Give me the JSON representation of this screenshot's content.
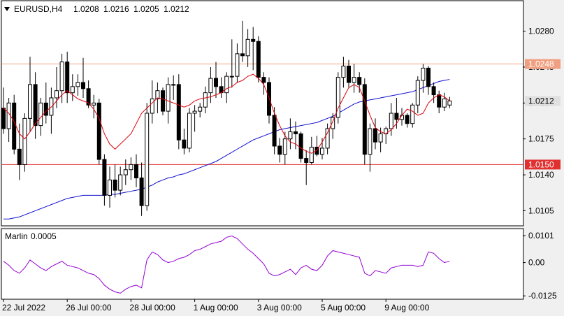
{
  "symbol_header": {
    "symbol": "EURUSD,H4",
    "open": "1.0208",
    "high": "1.0216",
    "low": "1.0205",
    "close": "1.0212",
    "menu_icon": "triangle-down-icon"
  },
  "indicator": {
    "name": "Marlin",
    "value": "0.0005",
    "color": "#9400d3"
  },
  "colors": {
    "background": "#ffffff",
    "frame": "#000000",
    "grid": "#e8e8e8",
    "bull_candle": "#ffffff",
    "bear_candle": "#000000",
    "fast_ma": "#e0000a",
    "slow_ma": "#1010d0",
    "level_upper": "#f0a080",
    "level_lower": "#e03030",
    "current_price": "#e0e0e0"
  },
  "chart_data": [
    {
      "type": "candlestick",
      "title": "EURUSD,H4",
      "y_ticks": [
        "1.0280",
        "1.0245",
        "1.0210",
        "1.0175",
        "1.0140",
        "1.0105"
      ],
      "ylim": [
        1.0091,
        1.0309
      ],
      "x_tick_labels": [
        "22 Jul 2022",
        "26 Jul 00:00",
        "28 Jul 00:00",
        "1 Aug 00:00",
        "3 Aug 00:00",
        "5 Aug 00:00",
        "9 Aug 00:00"
      ],
      "horizontal_levels": [
        {
          "label": "1.0248",
          "value": 1.0248,
          "color": "#f0a080"
        },
        {
          "label": "1.0150",
          "value": 1.015,
          "color": "#e03030"
        }
      ],
      "current_price": {
        "label": "1.0212",
        "value": 1.0212
      },
      "candles": [
        [
          1.0205,
          1.0225,
          1.018,
          1.0185
        ],
        [
          1.0185,
          1.0215,
          1.0172,
          1.021
        ],
        [
          1.021,
          1.0218,
          1.016,
          1.0165
        ],
        [
          1.0165,
          1.019,
          1.0135,
          1.015
        ],
        [
          1.015,
          1.02,
          1.0143,
          1.0195
        ],
        [
          1.0195,
          1.0255,
          1.0182,
          1.0228
        ],
        [
          1.0228,
          1.024,
          1.0175,
          1.0188
        ],
        [
          1.0188,
          1.0215,
          1.0178,
          1.021
        ],
        [
          1.021,
          1.023,
          1.019,
          1.0198
        ],
        [
          1.0198,
          1.0225,
          1.018,
          1.0215
        ],
        [
          1.0215,
          1.0245,
          1.0205,
          1.0222
        ],
        [
          1.0222,
          1.0258,
          1.021,
          1.025
        ],
        [
          1.025,
          1.026,
          1.021,
          1.022
        ],
        [
          1.022,
          1.0238,
          1.0212,
          1.0226
        ],
        [
          1.0226,
          1.0238,
          1.0217,
          1.023
        ],
        [
          1.023,
          1.0254,
          1.0215,
          1.0224
        ],
        [
          1.0224,
          1.0232,
          1.0205,
          1.0208
        ],
        [
          1.0208,
          1.0218,
          1.0195,
          1.021
        ],
        [
          1.021,
          1.0214,
          1.015,
          1.0155
        ],
        [
          1.0155,
          1.016,
          1.011,
          1.012
        ],
        [
          1.012,
          1.0148,
          1.0108,
          1.0135
        ],
        [
          1.0135,
          1.015,
          1.0118,
          1.0125
        ],
        [
          1.0125,
          1.0148,
          1.012,
          1.014
        ],
        [
          1.014,
          1.0155,
          1.013,
          1.0145
        ],
        [
          1.0145,
          1.0157,
          1.0135,
          1.015
        ],
        [
          1.015,
          1.016,
          1.0128,
          1.0137
        ],
        [
          1.0137,
          1.0152,
          1.01,
          1.011
        ],
        [
          1.011,
          1.021,
          1.0105,
          1.02
        ],
        [
          1.02,
          1.0232,
          1.019,
          1.0214
        ],
        [
          1.0214,
          1.023,
          1.02,
          1.0222
        ],
        [
          1.0222,
          1.0225,
          1.0198,
          1.0202
        ],
        [
          1.0202,
          1.0235,
          1.019,
          1.0228
        ],
        [
          1.0228,
          1.0237,
          1.0213,
          1.0228
        ],
        [
          1.0228,
          1.0238,
          1.0165,
          1.0174
        ],
        [
          1.0174,
          1.0185,
          1.016,
          1.0166
        ],
        [
          1.0166,
          1.0205,
          1.0162,
          1.02
        ],
        [
          1.02,
          1.0208,
          1.0182,
          1.0202
        ],
        [
          1.0202,
          1.021,
          1.0196,
          1.0206
        ],
        [
          1.0206,
          1.0226,
          1.02,
          1.022
        ],
        [
          1.022,
          1.0245,
          1.021,
          1.0234
        ],
        [
          1.0234,
          1.025,
          1.0215,
          1.0226
        ],
        [
          1.0226,
          1.0235,
          1.0215,
          1.022
        ],
        [
          1.022,
          1.024,
          1.021,
          1.0236
        ],
        [
          1.0236,
          1.0272,
          1.0225,
          1.0236
        ],
        [
          1.0236,
          1.0268,
          1.023,
          1.0258
        ],
        [
          1.0258,
          1.029,
          1.025,
          1.0256
        ],
        [
          1.0256,
          1.0282,
          1.0245,
          1.0272
        ],
        [
          1.0272,
          1.0284,
          1.0242,
          1.027
        ],
        [
          1.027,
          1.0275,
          1.023,
          1.0235
        ],
        [
          1.0235,
          1.024,
          1.0218,
          1.023
        ],
        [
          1.023,
          1.0235,
          1.019,
          1.0198
        ],
        [
          1.0198,
          1.0206,
          1.016,
          1.0168
        ],
        [
          1.0168,
          1.0176,
          1.0152,
          1.016
        ],
        [
          1.016,
          1.0182,
          1.015,
          1.0175
        ],
        [
          1.0175,
          1.0195,
          1.0165,
          1.0182
        ],
        [
          1.0182,
          1.0192,
          1.0165,
          1.018
        ],
        [
          1.018,
          1.0182,
          1.0152,
          1.0156
        ],
        [
          1.0156,
          1.0164,
          1.013,
          1.0152
        ],
        [
          1.0152,
          1.0177,
          1.015,
          1.0167
        ],
        [
          1.0167,
          1.0178,
          1.0158,
          1.016
        ],
        [
          1.016,
          1.0176,
          1.0155,
          1.0166
        ],
        [
          1.0166,
          1.019,
          1.016,
          1.0185
        ],
        [
          1.0185,
          1.02,
          1.0175,
          1.0196
        ],
        [
          1.0196,
          1.024,
          1.019,
          1.0235
        ],
        [
          1.0235,
          1.0255,
          1.0225,
          1.0246
        ],
        [
          1.0246,
          1.0252,
          1.0225,
          1.023
        ],
        [
          1.023,
          1.0248,
          1.022,
          1.0235
        ],
        [
          1.0235,
          1.024,
          1.022,
          1.0228
        ],
        [
          1.0228,
          1.0234,
          1.015,
          1.016
        ],
        [
          1.016,
          1.019,
          1.0143,
          1.0185
        ],
        [
          1.0185,
          1.0195,
          1.0165,
          1.0172
        ],
        [
          1.0172,
          1.0186,
          1.0162,
          1.018
        ],
        [
          1.018,
          1.0187,
          1.017,
          1.0185
        ],
        [
          1.0185,
          1.021,
          1.0178,
          1.02
        ],
        [
          1.02,
          1.0215,
          1.0185,
          1.0194
        ],
        [
          1.0194,
          1.0205,
          1.0188,
          1.0198
        ],
        [
          1.0198,
          1.02,
          1.0186,
          1.019
        ],
        [
          1.019,
          1.021,
          1.0186,
          1.0208
        ],
        [
          1.0208,
          1.0236,
          1.02,
          1.0232
        ],
        [
          1.0232,
          1.0248,
          1.022,
          1.0244
        ],
        [
          1.0244,
          1.0246,
          1.0218,
          1.0226
        ],
        [
          1.0226,
          1.023,
          1.021,
          1.0218
        ],
        [
          1.0218,
          1.0222,
          1.02,
          1.0206
        ],
        [
          1.0206,
          1.022,
          1.0202,
          1.0214
        ],
        [
          1.0208,
          1.0216,
          1.0205,
          1.0212
        ]
      ],
      "fast_ma": [
        1.0205,
        1.02,
        1.0192,
        1.018,
        1.0175,
        1.0182,
        1.019,
        1.0196,
        1.0202,
        1.0206,
        1.0212,
        1.0218,
        1.0222,
        1.0218,
        1.0214,
        1.0212,
        1.021,
        1.0204,
        1.0195,
        1.018,
        1.017,
        1.0165,
        1.017,
        1.0175,
        1.018,
        1.019,
        1.02,
        1.0205,
        1.021,
        1.0215,
        1.0214,
        1.0212,
        1.021,
        1.0208,
        1.0206,
        1.0208,
        1.0212,
        1.0214,
        1.0215,
        1.0216,
        1.0218,
        1.022,
        1.0224,
        1.0226,
        1.023,
        1.0232,
        1.0236,
        1.0238,
        1.0234,
        1.0228,
        1.0215,
        1.02,
        1.0188,
        1.0178,
        1.0172,
        1.017,
        1.0166,
        1.0163,
        1.0161,
        1.0164,
        1.0172,
        1.0181,
        1.0192,
        1.0205,
        1.0215,
        1.0225,
        1.0228,
        1.0225,
        1.0212,
        1.0198,
        1.0186,
        1.0182,
        1.018,
        1.0184,
        1.019,
        1.0198,
        1.0204,
        1.0202,
        1.0198,
        1.02,
        1.021,
        1.0215,
        1.0218,
        1.0216,
        1.0212
      ],
      "slow_ma": [
        1.0097,
        1.0097,
        1.0098,
        1.0099,
        1.0101,
        1.0103,
        1.0105,
        1.0107,
        1.0109,
        1.0111,
        1.0113,
        1.0115,
        1.0117,
        1.0118,
        1.0119,
        1.012,
        1.012,
        1.012,
        1.012,
        1.012,
        1.0121,
        1.0121,
        1.0122,
        1.0123,
        1.0124,
        1.0125,
        1.0126,
        1.0128,
        1.013,
        1.0133,
        1.0135,
        1.0137,
        1.0138,
        1.014,
        1.0141,
        1.0143,
        1.0145,
        1.0147,
        1.0149,
        1.0151,
        1.0153,
        1.0156,
        1.0159,
        1.0162,
        1.0165,
        1.0168,
        1.0171,
        1.0174,
        1.0176,
        1.0178,
        1.018,
        1.0182,
        1.0184,
        1.0185,
        1.0186,
        1.0187,
        1.0188,
        1.0189,
        1.019,
        1.0191,
        1.0193,
        1.0195,
        1.0197,
        1.02,
        1.0203,
        1.0206,
        1.0209,
        1.0211,
        1.0212,
        1.0213,
        1.0214,
        1.0215,
        1.0216,
        1.0217,
        1.0218,
        1.0219,
        1.022,
        1.0221,
        1.0223,
        1.0225,
        1.0227,
        1.0229,
        1.0231,
        1.0232,
        1.0233
      ]
    },
    {
      "type": "line",
      "title": "Marlin 0.0005",
      "y_ticks": [
        "0.0101",
        "0.00",
        "-0.0125"
      ],
      "ylim": [
        -0.0135,
        0.0125
      ],
      "series": [
        {
          "name": "Marlin",
          "values": [
            0.0005,
            -0.001,
            -0.003,
            -0.004,
            -0.002,
            0.001,
            -0.0005,
            -0.002,
            -0.003,
            -0.0015,
            -0.0005,
            0.0005,
            -0.001,
            -0.0015,
            -0.002,
            -0.003,
            -0.004,
            -0.0045,
            -0.006,
            -0.0085,
            -0.01,
            -0.011,
            -0.0115,
            -0.01,
            -0.009,
            -0.0085,
            -0.0095,
            0.001,
            0.004,
            0.003,
            0.001,
            0.0,
            0.0005,
            0.0015,
            0.002,
            0.003,
            0.0045,
            0.005,
            0.006,
            0.007,
            0.0075,
            0.008,
            0.0095,
            0.01,
            0.009,
            0.007,
            0.005,
            0.0035,
            0.0015,
            -0.0005,
            -0.004,
            -0.005,
            -0.0045,
            -0.0035,
            -0.0025,
            -0.0045,
            -0.002,
            -0.001,
            -0.0025,
            -0.003,
            -0.001,
            0.0025,
            0.0045,
            0.004,
            0.0035,
            0.003,
            0.0025,
            0.002,
            -0.004,
            -0.005,
            -0.003,
            -0.0035,
            -0.004,
            -0.002,
            -0.0015,
            -0.001,
            -0.001,
            -0.001,
            -0.0015,
            -0.001,
            0.004,
            0.0035,
            0.0015,
            0.0,
            0.0005
          ]
        }
      ]
    }
  ]
}
